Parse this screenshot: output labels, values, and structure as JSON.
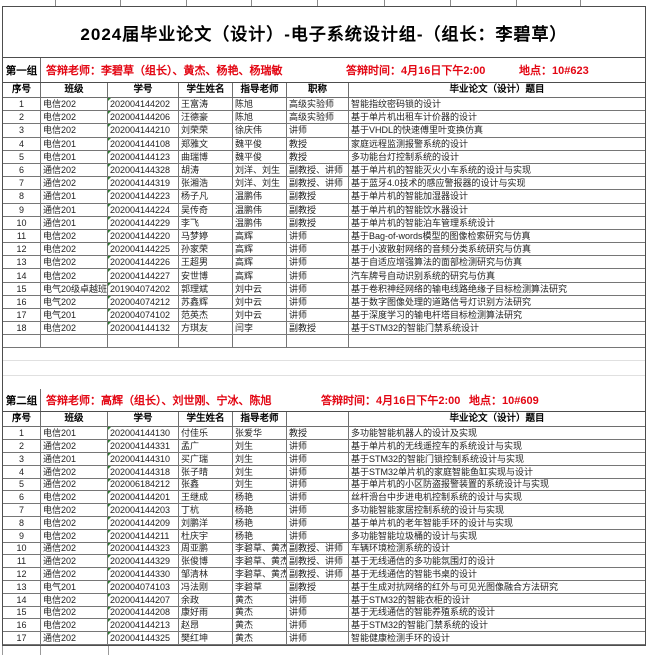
{
  "page": {
    "background": "#ffffff",
    "border_color": "#4d4d4d",
    "accent_red": "#e30613",
    "student_id_marker_color": "#2e7d32"
  },
  "title": "2024届毕业论文（设计）-电子系统设计组-（组长：李碧草）",
  "groups": [
    {
      "label": "第一组",
      "teachers": "答辩老师：李碧草（组长）、黄杰、杨艳、杨瑞敏",
      "time": "答辩时间：4月16日下午2:00",
      "location": "地点：10#623",
      "headers": [
        "序号",
        "班级",
        "学号",
        "学生姓名",
        "指导老师",
        "职称",
        "毕业论文（设计）题目"
      ],
      "rows": [
        [
          "1",
          "电信202",
          "202004144202",
          "王富涛",
          "陈旭",
          "高级实验师",
          "智能指纹密码锁的设计"
        ],
        [
          "2",
          "电信202",
          "202004144206",
          "汪德豪",
          "陈旭",
          "高级实验师",
          "基于单片机出租车计价器的设计"
        ],
        [
          "3",
          "电信202",
          "202004144210",
          "刘荣荣",
          "徐庆伟",
          "讲师",
          "基于VHDL的快速傅里叶变换仿真"
        ],
        [
          "4",
          "电信201",
          "202004144108",
          "郑雅文",
          "魏平俊",
          "教授",
          "家庭远程监测报警系统的设计"
        ],
        [
          "5",
          "电信201",
          "202004144123",
          "曲瑞博",
          "魏平俊",
          "教授",
          "多功能台灯控制系统的设计"
        ],
        [
          "6",
          "通信202",
          "202004144328",
          "胡涛",
          "刘洋、刘生",
          "副教授、讲师",
          "基于单片机的智能灭火小车系统的设计与实现"
        ],
        [
          "7",
          "通信202",
          "202004144319",
          "张湘浩",
          "刘洋、刘生",
          "副教授、讲师",
          "基于蓝牙4.0技术的感应警报器的设计与实现"
        ],
        [
          "8",
          "通信201",
          "202004144223",
          "杨子凡",
          "温鹏伟",
          "副教授",
          "基于单片机的智能加湿器设计"
        ],
        [
          "9",
          "通信201",
          "202004144224",
          "吴传奇",
          "温鹏伟",
          "副教授",
          "基于单片机的智能饮水器设计"
        ],
        [
          "10",
          "通信201",
          "202004144229",
          "李飞",
          "温鹏伟",
          "副教授",
          "基于单片机的智能泊车管理系统设计"
        ],
        [
          "11",
          "电信202",
          "202004144220",
          "马梦婷",
          "高辉",
          "讲师",
          "基于Bag-of-words模型的图像检索研究与仿真"
        ],
        [
          "12",
          "电信202",
          "202004144225",
          "孙家荣",
          "高辉",
          "讲师",
          "基于小波散射网络的音频分类系统研究与仿真"
        ],
        [
          "13",
          "电信202",
          "202004144226",
          "王超男",
          "高辉",
          "讲师",
          "基于自适应增强算法的面部检测研究与仿真"
        ],
        [
          "14",
          "电信202",
          "202004144227",
          "安世博",
          "高辉",
          "讲师",
          "汽车牌号自动识别系统的研究与仿真"
        ],
        [
          "15",
          "电气20级卓越班",
          "201904074202",
          "郭理斌",
          "刘中云",
          "讲师",
          "基于卷积神经网络的输电线路绝缘子目标检测算法研究"
        ],
        [
          "16",
          "电气202",
          "202004074212",
          "苏鑫辉",
          "刘中云",
          "讲师",
          "基于数字图像处理的道路信号灯识别方法研究"
        ],
        [
          "17",
          "电气201",
          "202004074102",
          "范英杰",
          "刘中云",
          "讲师",
          "基于深度学习的输电杆塔目标检测算法研究"
        ],
        [
          "18",
          "电信202",
          "202004144132",
          "方琪友",
          "闫孛",
          "副教授",
          "基于STM32的智能门禁系统设计"
        ]
      ]
    },
    {
      "label": "第二组",
      "teachers": "答辩老师：高辉（组长）、刘世刚、宁冰、陈旭",
      "time": "答辩时间：4月16日下午2:00",
      "location": "地点：10#609",
      "headers": [
        "序号",
        "班级",
        "学号",
        "学生姓名",
        "指导老师",
        "",
        "毕业论文（设计）题目"
      ],
      "rows": [
        [
          "1",
          "电信201",
          "202004144130",
          "付佳乐",
          "张爱华",
          "教授",
          "多功能智能机器人的设计及实现"
        ],
        [
          "2",
          "通信202",
          "202004144331",
          "孟广",
          "刘生",
          "讲师",
          "基于单片机的无线遥控车的系统设计与实现"
        ],
        [
          "3",
          "通信201",
          "202004144310",
          "买广瑞",
          "刘生",
          "讲师",
          "基于STM32的智能门锁控制系统设计与实现"
        ],
        [
          "4",
          "通信202",
          "202004144318",
          "张子晴",
          "刘生",
          "讲师",
          "基于STM32单片机的家庭智能鱼缸实现与设计"
        ],
        [
          "5",
          "通信202",
          "202006184212",
          "张鑫",
          "刘生",
          "讲师",
          "基于单片机的小区防盗报警装置的系统设计与实现"
        ],
        [
          "6",
          "电信202",
          "202004144201",
          "王继成",
          "杨艳",
          "讲师",
          "丝杆滑台中步进电机控制系统的设计与实现"
        ],
        [
          "7",
          "电信202",
          "202004144203",
          "丁杭",
          "杨艳",
          "讲师",
          "多功能智能家居控制系统的设计与实现"
        ],
        [
          "8",
          "电信202",
          "202004144209",
          "刘鹏洋",
          "杨艳",
          "讲师",
          "基于单片机的老年智能手环的设计与实现"
        ],
        [
          "9",
          "电信202",
          "202004144211",
          "杜庆宇",
          "杨艳",
          "讲师",
          "多功能智能垃圾桶的设计与实现"
        ],
        [
          "10",
          "通信202",
          "202004144323",
          "周亚鹏",
          "李碧草、黄杰",
          "副教授、讲师",
          "车辆环境检测系统的设计"
        ],
        [
          "11",
          "通信202",
          "202004144329",
          "张俊博",
          "李碧草、黄杰",
          "副教授、讲师",
          "基于无线通信的多功能氛围灯的设计"
        ],
        [
          "12",
          "通信202",
          "202004144330",
          "邹清林",
          "李碧草、黄杰",
          "副教授、讲师",
          "基于无线通信的智能书桌的设计"
        ],
        [
          "13",
          "电气201",
          "202004074103",
          "冯法刚",
          "李碧草",
          "副教授",
          "基于生成对抗网络的红外与可见光图像融合方法研究"
        ],
        [
          "14",
          "电信202",
          "202004144207",
          "余政",
          "黄杰",
          "讲师",
          "基于STM32的智能衣柜的设计"
        ],
        [
          "15",
          "电信202",
          "202004144208",
          "康好雨",
          "黄杰",
          "讲师",
          "基于无线通信的智能养殖系统的设计"
        ],
        [
          "16",
          "电信202",
          "202004144213",
          "赵昂",
          "黄杰",
          "讲师",
          "基于STM32的智能门禁系统的设计"
        ],
        [
          "17",
          "通信202",
          "202004144325",
          "樊红坤",
          "黄杰",
          "讲师",
          "智能健康检测手环的设计"
        ]
      ]
    }
  ]
}
